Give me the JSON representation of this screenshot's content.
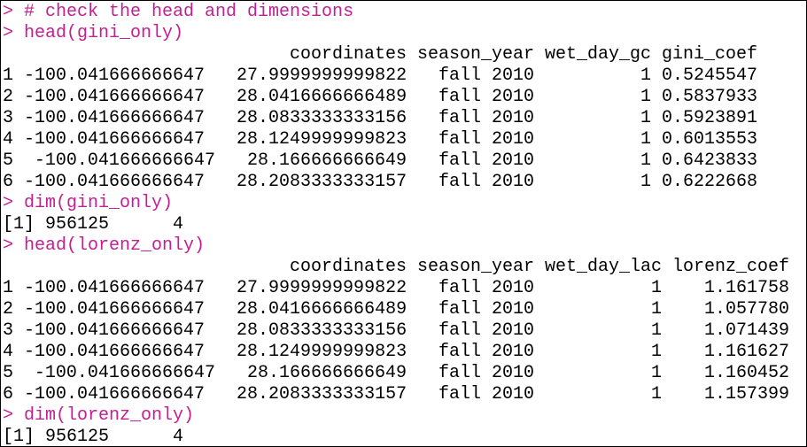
{
  "blocks": [
    {
      "input": "> # check the head and dimensions"
    },
    {
      "input": "> head(gini_only)"
    },
    {
      "table": {
        "columns": [
          "coordinates",
          "season_year",
          "wet_day_gc",
          "gini_coef"
        ],
        "rows": [
          {
            "name": "1",
            "cells": [
              "-100.041666666647   27.9999999999822",
              "fall 2010",
              "1",
              "0.5245547"
            ]
          },
          {
            "name": "2",
            "cells": [
              "-100.041666666647   28.0416666666489",
              "fall 2010",
              "1",
              "0.5837933"
            ]
          },
          {
            "name": "3",
            "cells": [
              "-100.041666666647   28.0833333333156",
              "fall 2010",
              "1",
              "0.5923891"
            ]
          },
          {
            "name": "4",
            "cells": [
              "-100.041666666647   28.1249999999823",
              "fall 2010",
              "1",
              "0.6013553"
            ]
          },
          {
            "name": "5",
            "cells": [
              "-100.041666666647   28.166666666649",
              "fall 2010",
              "1",
              "0.6423833"
            ]
          },
          {
            "name": "6",
            "cells": [
              "-100.041666666647   28.2083333333157",
              "fall 2010",
              "1",
              "0.6222668"
            ]
          }
        ]
      }
    },
    {
      "input": "> dim(gini_only)"
    },
    {
      "output": "[1] 956125      4"
    },
    {
      "input": "> head(lorenz_only)"
    },
    {
      "table": {
        "columns": [
          "coordinates",
          "season_year",
          "wet_day_lac",
          "lorenz_coef"
        ],
        "rows": [
          {
            "name": "1",
            "cells": [
              "-100.041666666647   27.9999999999822",
              "fall 2010",
              "1",
              "1.161758"
            ]
          },
          {
            "name": "2",
            "cells": [
              "-100.041666666647   28.0416666666489",
              "fall 2010",
              "1",
              "1.057780"
            ]
          },
          {
            "name": "3",
            "cells": [
              "-100.041666666647   28.0833333333156",
              "fall 2010",
              "1",
              "1.071439"
            ]
          },
          {
            "name": "4",
            "cells": [
              "-100.041666666647   28.1249999999823",
              "fall 2010",
              "1",
              "1.161627"
            ]
          },
          {
            "name": "5",
            "cells": [
              "-100.041666666647   28.166666666649",
              "fall 2010",
              "1",
              "1.160452"
            ]
          },
          {
            "name": "6",
            "cells": [
              "-100.041666666647   28.2083333333157",
              "fall 2010",
              "1",
              "1.157399"
            ]
          }
        ]
      }
    },
    {
      "input": "> dim(lorenz_only)"
    },
    {
      "output": "[1] 956125      4"
    }
  ]
}
